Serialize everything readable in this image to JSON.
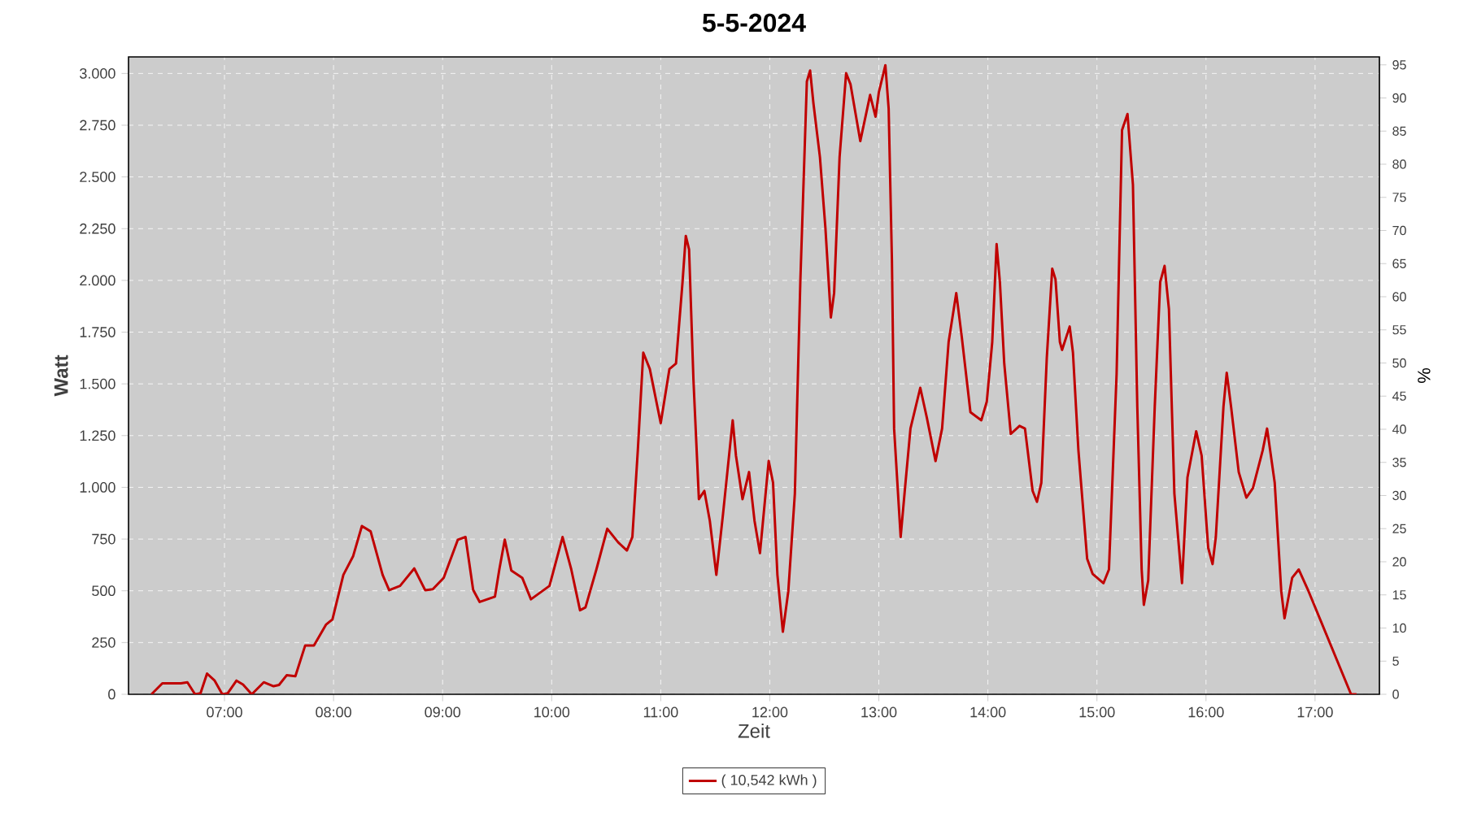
{
  "chart_data": {
    "type": "line",
    "title": "5-5-2024",
    "xlabel": "Zeit",
    "ylabel": "Watt",
    "y2label": "%",
    "x": [
      6.33,
      6.43,
      6.6,
      6.66,
      6.73,
      6.78,
      6.84,
      6.91,
      6.98,
      7.03,
      7.11,
      7.17,
      7.25,
      7.36,
      7.45,
      7.5,
      7.57,
      7.65,
      7.74,
      7.82,
      7.93,
      7.99,
      8.09,
      8.18,
      8.26,
      8.34,
      8.45,
      8.51,
      8.61,
      8.74,
      8.84,
      8.91,
      9.01,
      9.14,
      9.21,
      9.28,
      9.34,
      9.48,
      9.52,
      9.57,
      9.63,
      9.73,
      9.81,
      9.98,
      10.1,
      10.18,
      10.26,
      10.31,
      10.41,
      10.51,
      10.61,
      10.69,
      10.74,
      10.79,
      10.84,
      10.9,
      11.0,
      11.08,
      11.14,
      11.2,
      11.23,
      11.26,
      11.3,
      11.35,
      11.4,
      11.45,
      11.51,
      11.57,
      11.66,
      11.69,
      11.75,
      11.81,
      11.86,
      11.91,
      11.99,
      12.03,
      12.07,
      12.12,
      12.17,
      12.23,
      12.28,
      12.34,
      12.37,
      12.4,
      12.46,
      12.51,
      12.56,
      12.59,
      12.64,
      12.7,
      12.74,
      12.83,
      12.92,
      12.97,
      13.0,
      13.06,
      13.09,
      13.12,
      13.14,
      13.17,
      13.2,
      13.24,
      13.29,
      13.38,
      13.44,
      13.52,
      13.58,
      13.64,
      13.71,
      13.76,
      13.84,
      13.94,
      13.99,
      14.04,
      14.08,
      14.11,
      14.15,
      14.21,
      14.29,
      14.34,
      14.41,
      14.45,
      14.49,
      14.54,
      14.59,
      14.62,
      14.66,
      14.68,
      14.75,
      14.78,
      14.83,
      14.91,
      14.96,
      15.06,
      15.11,
      15.18,
      15.23,
      15.28,
      15.33,
      15.37,
      15.41,
      15.43,
      15.47,
      15.53,
      15.58,
      15.62,
      15.66,
      15.71,
      15.78,
      15.83,
      15.91,
      15.96,
      16.02,
      16.06,
      16.09,
      16.16,
      16.19,
      16.23,
      16.3,
      16.37,
      16.43,
      16.52,
      16.56,
      16.63,
      16.69,
      16.72,
      16.79,
      16.85,
      16.94,
      17.33,
      17.38
    ],
    "series": [
      {
        "name": "( 10,542 kWh )",
        "color": "#c00000",
        "values": [
          0,
          53,
          53,
          58,
          0,
          5,
          100,
          66,
          0,
          5,
          66,
          47,
          0,
          58,
          39,
          45,
          92,
          87,
          236,
          236,
          336,
          362,
          577,
          668,
          813,
          787,
          577,
          503,
          524,
          608,
          503,
          508,
          563,
          747,
          760,
          505,
          446,
          472,
          603,
          747,
          598,
          563,
          459,
          524,
          760,
          603,
          406,
          420,
          603,
          800,
          734,
          695,
          760,
          1179,
          1651,
          1572,
          1310,
          1572,
          1598,
          1992,
          2215,
          2149,
          1520,
          943,
          983,
          839,
          577,
          865,
          1324,
          1153,
          943,
          1074,
          839,
          682,
          1127,
          1022,
          577,
          302,
          498,
          970,
          1992,
          2961,
          3014,
          2857,
          2595,
          2254,
          1821,
          1939,
          2595,
          3001,
          2948,
          2673,
          2896,
          2791,
          2909,
          3040,
          2830,
          2097,
          1284,
          1022,
          760,
          996,
          1284,
          1481,
          1337,
          1127,
          1284,
          1703,
          1939,
          1729,
          1363,
          1324,
          1415,
          1703,
          2175,
          1992,
          1598,
          1258,
          1297,
          1284,
          983,
          930,
          1022,
          1625,
          2057,
          2005,
          1703,
          1664,
          1777,
          1651,
          1179,
          655,
          582,
          537,
          603,
          1546,
          2726,
          2804,
          2463,
          1389,
          603,
          432,
          550,
          1389,
          1992,
          2070,
          1861,
          970,
          537,
          1048,
          1271,
          1153,
          708,
          629,
          760,
          1389,
          1554,
          1389,
          1074,
          950,
          996,
          1179,
          1284,
          1022,
          498,
          367,
          563,
          603,
          498,
          0,
          0
        ]
      }
    ],
    "xlim": [
      6.12,
      17.59
    ],
    "xticks": [
      {
        "value": 7,
        "label": "07:00"
      },
      {
        "value": 8,
        "label": "08:00"
      },
      {
        "value": 9,
        "label": "09:00"
      },
      {
        "value": 10,
        "label": "10:00"
      },
      {
        "value": 11,
        "label": "11:00"
      },
      {
        "value": 12,
        "label": "12:00"
      },
      {
        "value": 13,
        "label": "13:00"
      },
      {
        "value": 14,
        "label": "14:00"
      },
      {
        "value": 15,
        "label": "15:00"
      },
      {
        "value": 16,
        "label": "16:00"
      },
      {
        "value": 17,
        "label": "17:00"
      }
    ],
    "ylim": [
      0,
      3080
    ],
    "yticks": [
      0,
      250,
      500,
      750,
      {
        "value": 1000,
        "label": "1.000"
      },
      {
        "value": 1250,
        "label": "1.250"
      },
      {
        "value": 1500,
        "label": "1.500"
      },
      {
        "value": 1750,
        "label": "1.750"
      },
      {
        "value": 2000,
        "label": "2.000"
      },
      {
        "value": 2250,
        "label": "2.250"
      },
      {
        "value": 2500,
        "label": "2.500"
      },
      {
        "value": 2750,
        "label": "2.750"
      },
      {
        "value": 3000,
        "label": "3.000"
      }
    ],
    "y2lim": [
      0,
      96.2
    ],
    "y2ticks": [
      0,
      5,
      10,
      15,
      20,
      25,
      30,
      35,
      40,
      45,
      50,
      55,
      60,
      65,
      70,
      75,
      80,
      85,
      90,
      95
    ],
    "grid": true,
    "legend": "bottom",
    "line_style": "solid"
  }
}
